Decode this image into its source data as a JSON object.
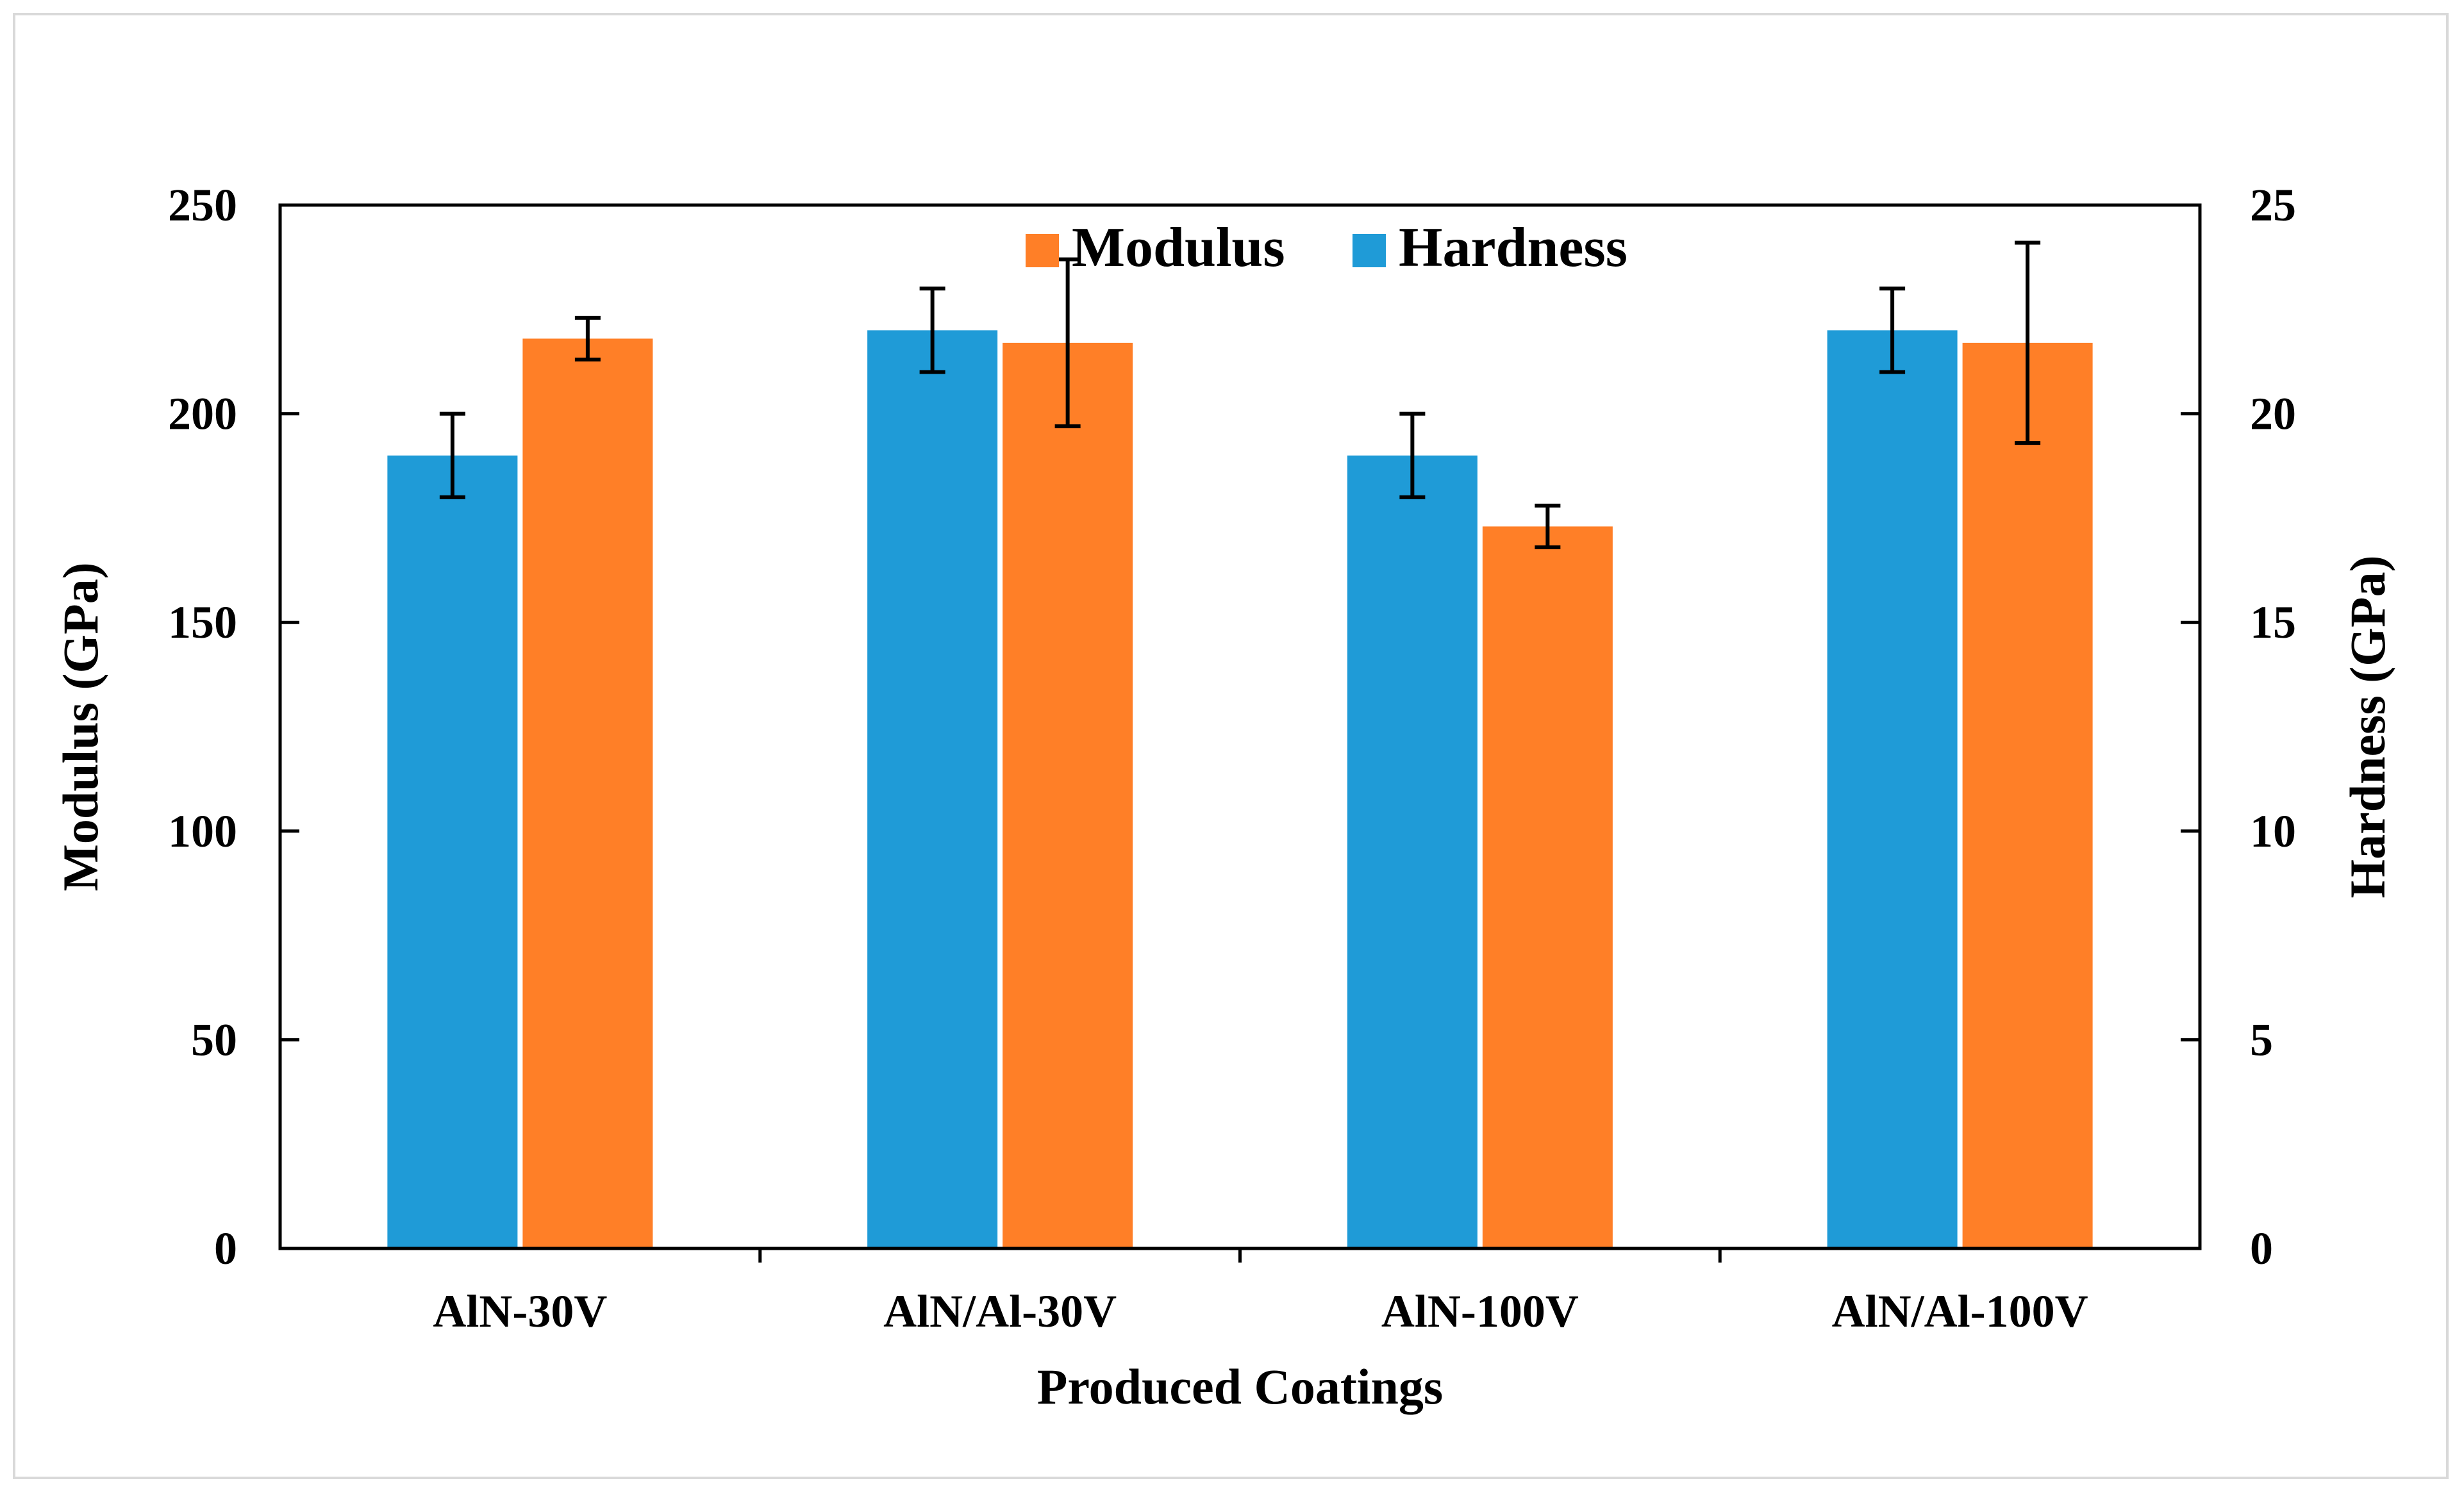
{
  "chart_data": {
    "type": "bar",
    "categories": [
      "AlN-30V",
      "AlN/Al-30V",
      "AlN-100V",
      "AlN/Al-100V"
    ],
    "series": [
      {
        "name": "Hardness",
        "axis": "right",
        "color": "#1f9bd7",
        "values": [
          19,
          22,
          19,
          22
        ],
        "errors": [
          1.0,
          1.0,
          1.0,
          1.0
        ]
      },
      {
        "name": "Modulus",
        "axis": "left",
        "color": "#ff7f27",
        "values": [
          218,
          217,
          173,
          217
        ],
        "errors": [
          5,
          20,
          5,
          24
        ]
      }
    ],
    "legend_order": [
      "Modulus",
      "Hardness"
    ],
    "legend_position": "top-center",
    "xlabel": "Produced Coatings",
    "ylabel": "Modulus (GPa)",
    "y2label": "Hardness (GPa)",
    "ylim": [
      0,
      250
    ],
    "y2lim": [
      0,
      25
    ],
    "yticks": [
      "0",
      "50",
      "100",
      "150",
      "200",
      "250"
    ],
    "y2ticks": [
      "0",
      "5",
      "10",
      "15",
      "20",
      "25"
    ],
    "grid": false
  }
}
